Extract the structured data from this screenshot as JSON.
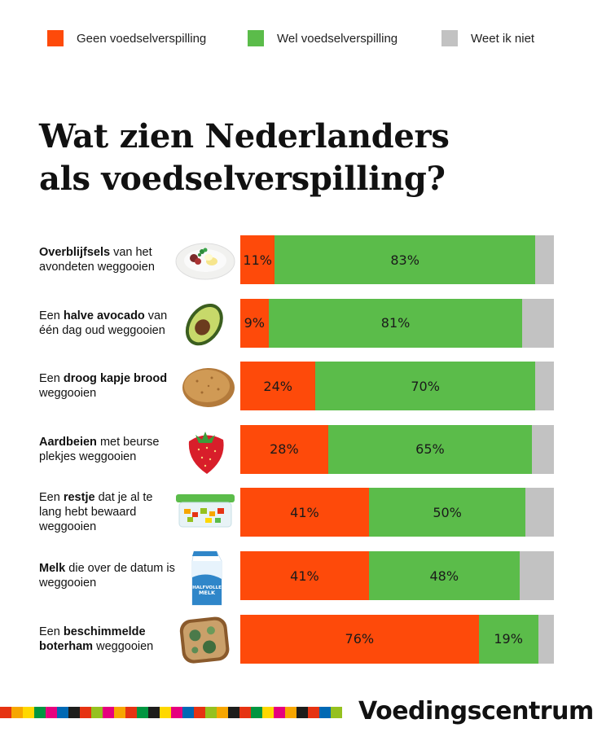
{
  "legend": [
    {
      "label": "Geen voedselverspilling",
      "color": "#fe4a0a"
    },
    {
      "label": "Wel voedselverspilling",
      "color": "#5bbc4a"
    },
    {
      "label": "Weet ik niet",
      "color": "#c2c2c2"
    }
  ],
  "title_line1": "Wat zien Nederlanders",
  "title_line2": "als voedselverspilling?",
  "brand": "Voedingscentrum",
  "chart_data": {
    "type": "bar",
    "orientation": "horizontal-stacked-100",
    "series_names": [
      "Geen voedselverspilling",
      "Wel voedselverspilling",
      "Weet ik niet"
    ],
    "rows": [
      {
        "label_parts": [
          {
            "t": "Overblijfsels",
            "b": true
          },
          {
            "t": " van het avondeten weggooien",
            "b": false
          }
        ],
        "icon": "plate-leftovers-icon",
        "geen": 11,
        "wel": 83,
        "weet": 6,
        "geen_label": "11%",
        "wel_label": "83%"
      },
      {
        "label_parts": [
          {
            "t": "Een ",
            "b": false
          },
          {
            "t": "halve avocado",
            "b": true
          },
          {
            "t": " van één dag oud weggooien",
            "b": false
          }
        ],
        "icon": "avocado-icon",
        "geen": 9,
        "wel": 81,
        "weet": 10,
        "geen_label": "9%",
        "wel_label": "81%"
      },
      {
        "label_parts": [
          {
            "t": "Een ",
            "b": false
          },
          {
            "t": "droog kapje brood",
            "b": true
          },
          {
            "t": " weggooien",
            "b": false
          }
        ],
        "icon": "bread-crust-icon",
        "geen": 24,
        "wel": 70,
        "weet": 6,
        "geen_label": "24%",
        "wel_label": "70%"
      },
      {
        "label_parts": [
          {
            "t": "Aardbeien",
            "b": true
          },
          {
            "t": " met beurse plekjes weggooien",
            "b": false
          }
        ],
        "icon": "strawberry-icon",
        "geen": 28,
        "wel": 65,
        "weet": 7,
        "geen_label": "28%",
        "wel_label": "65%"
      },
      {
        "label_parts": [
          {
            "t": "Een ",
            "b": false
          },
          {
            "t": "restje",
            "b": true
          },
          {
            "t": " dat je al te lang hebt bewaard weggooien",
            "b": false
          }
        ],
        "icon": "leftover-container-icon",
        "geen": 41,
        "wel": 50,
        "weet": 9,
        "geen_label": "41%",
        "wel_label": "50%"
      },
      {
        "label_parts": [
          {
            "t": "Melk",
            "b": true
          },
          {
            "t": " die over de datum is weggooien",
            "b": false
          }
        ],
        "icon": "milk-carton-icon",
        "icon_text": "HALFVOLLE MELK",
        "geen": 41,
        "wel": 48,
        "weet": 11,
        "geen_label": "41%",
        "wel_label": "48%"
      },
      {
        "label_parts": [
          {
            "t": "Een ",
            "b": false
          },
          {
            "t": "beschimmelde boterham",
            "b": true
          },
          {
            "t": " weggooien",
            "b": false
          }
        ],
        "icon": "moldy-bread-icon",
        "geen": 76,
        "wel": 19,
        "weet": 5,
        "geen_label": "76%",
        "wel_label": "19%"
      }
    ]
  },
  "stripe_colors": [
    "#e63312",
    "#f7a600",
    "#ffd800",
    "#009640",
    "#e6007e",
    "#0069b4",
    "#1d1d1b",
    "#e63312",
    "#95c11f",
    "#e6007e",
    "#f7a600",
    "#e63312",
    "#009640",
    "#1d1d1b",
    "#ffd800",
    "#e6007e",
    "#0069b4",
    "#e63312",
    "#95c11f",
    "#f7a600",
    "#1d1d1b",
    "#e63312",
    "#009640",
    "#ffd800",
    "#e6007e",
    "#f7a600",
    "#1d1d1b",
    "#e63312",
    "#0069b4",
    "#95c11f"
  ]
}
